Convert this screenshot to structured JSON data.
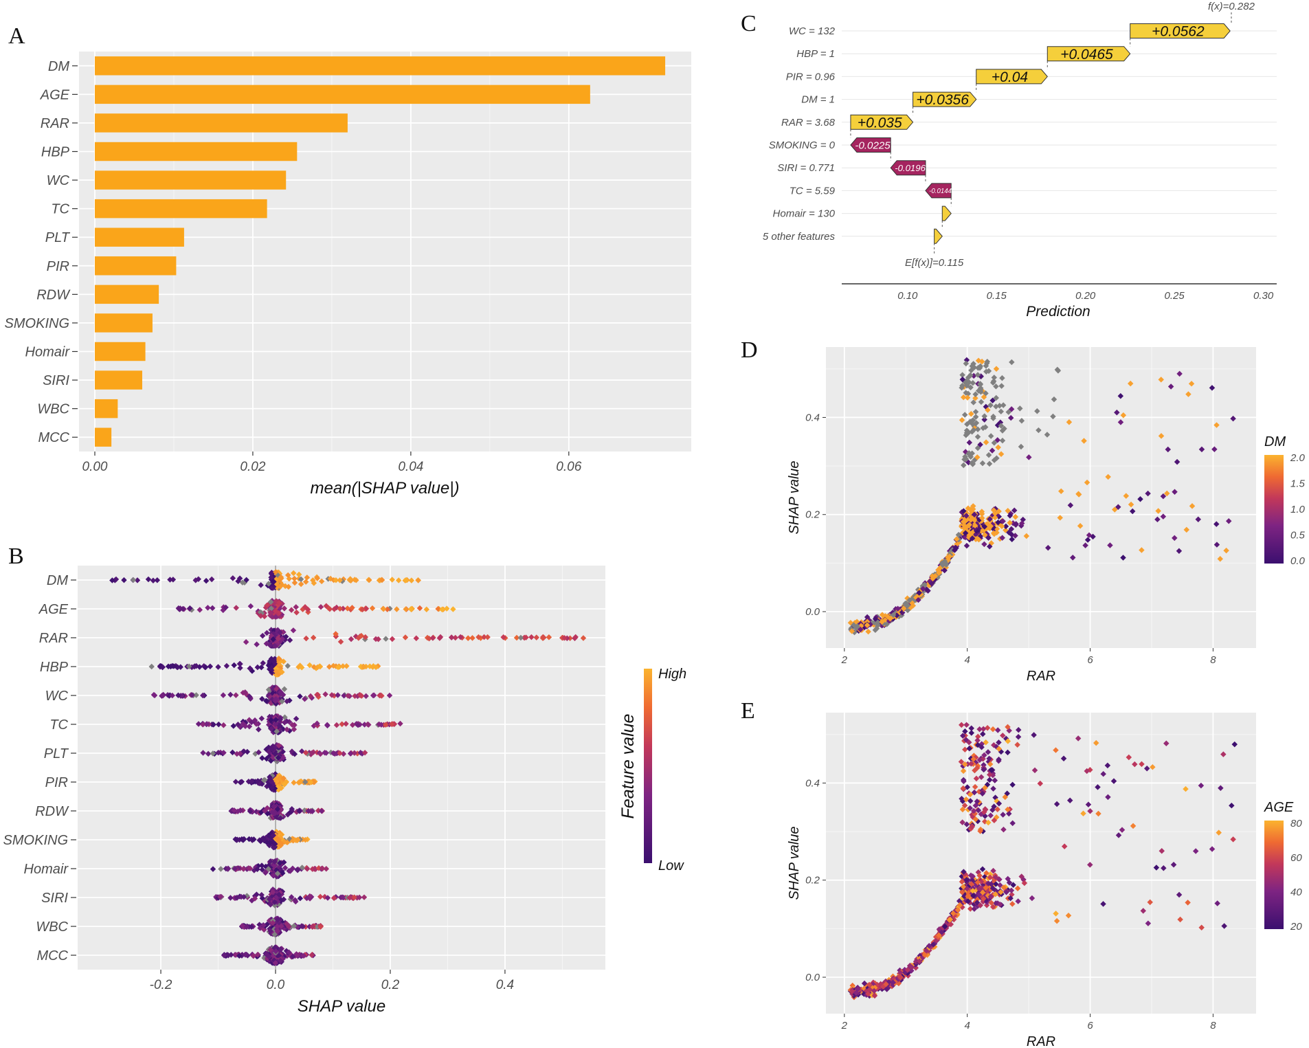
{
  "figure": {
    "panel_letters": [
      "A",
      "B",
      "C",
      "D",
      "E"
    ]
  },
  "chart_data": [
    {
      "panel": "A",
      "type": "bar",
      "orientation": "horizontal",
      "categories": [
        "DM",
        "AGE",
        "RAR",
        "HBP",
        "WC",
        "TC",
        "PLT",
        "PIR",
        "RDW",
        "SMOKING",
        "Homair",
        "SIRI",
        "WBC",
        "MCC"
      ],
      "values": [
        0.0722,
        0.0627,
        0.032,
        0.0256,
        0.0242,
        0.0218,
        0.0113,
        0.0103,
        0.0081,
        0.0073,
        0.0064,
        0.006,
        0.0029,
        0.0021
      ],
      "xlabel": "mean(|SHAP value|)",
      "ylabel": "",
      "xlim": [
        -0.002,
        0.0755
      ],
      "xticks": [
        0.0,
        0.02,
        0.04,
        0.06
      ],
      "xtick_labels": [
        "0.00",
        "0.02",
        "0.04",
        "0.06"
      ],
      "bar_color": "#FAA51A"
    },
    {
      "panel": "B",
      "type": "scatter",
      "subtype": "beeswarm",
      "categories": [
        "DM",
        "AGE",
        "RAR",
        "HBP",
        "WC",
        "TC",
        "PLT",
        "PIR",
        "RDW",
        "SMOKING",
        "Homair",
        "SIRI",
        "WBC",
        "MCC"
      ],
      "ranges": [
        [
          -0.31,
          0.25
        ],
        [
          -0.17,
          0.32
        ],
        [
          -0.06,
          0.54
        ],
        [
          -0.22,
          0.18
        ],
        [
          -0.22,
          0.2
        ],
        [
          -0.14,
          0.22
        ],
        [
          -0.13,
          0.16
        ],
        [
          -0.07,
          0.07
        ],
        [
          -0.08,
          0.09
        ],
        [
          -0.07,
          0.06
        ],
        [
          -0.11,
          0.09
        ],
        [
          -0.11,
          0.16
        ],
        [
          -0.06,
          0.08
        ],
        [
          -0.09,
          0.07
        ]
      ],
      "xlabel": "SHAP value",
      "xlim": [
        -0.345,
        0.575
      ],
      "xticks": [
        -0.2,
        0.0,
        0.2,
        0.4
      ],
      "xtick_labels": [
        "-0.2",
        "0.0",
        "0.2",
        "0.4"
      ],
      "legend": {
        "title": "Feature value",
        "high": "High",
        "low": "Low",
        "position": "right"
      }
    },
    {
      "panel": "C",
      "type": "bar",
      "subtype": "waterfall",
      "features": [
        "WC = 132",
        "HBP = 1",
        "PIR = 0.96",
        "DM = 1",
        "RAR = 3.68",
        "SMOKING = 0",
        "SIRI = 0.771",
        "TC = 5.59",
        "Homair = 130",
        "5 other features"
      ],
      "contributions": [
        0.0562,
        0.0465,
        0.04,
        0.0356,
        0.035,
        -0.0225,
        -0.0196,
        -0.0144,
        0.005,
        0.0045
      ],
      "contribution_labels": [
        "+0.0562",
        "+0.0465",
        "+0.04",
        "+0.0356",
        "+0.035",
        "-0.0225",
        "-0.0196",
        "-0.0144",
        "",
        ""
      ],
      "base_value": 0.115,
      "base_label": "E[f(x)]=0.115",
      "output_value": 0.282,
      "output_label": "f(x)=0.282",
      "xlabel": "Prediction",
      "xlim": [
        0.063,
        0.3075
      ],
      "xticks": [
        0.1,
        0.15,
        0.2,
        0.25,
        0.3
      ],
      "xtick_labels": [
        "0.10",
        "0.15",
        "0.20",
        "0.25",
        "0.30"
      ],
      "positive_color": "#F5CF3B",
      "negative_color": "#A5245F"
    },
    {
      "panel": "D",
      "type": "scatter",
      "xlabel": "RAR",
      "ylabel": "SHAP value",
      "xlim": [
        1.7,
        8.7
      ],
      "ylim": [
        -0.075,
        0.545
      ],
      "xticks": [
        2,
        4,
        6,
        8
      ],
      "xtick_labels": [
        "2",
        "4",
        "6",
        "8"
      ],
      "yticks": [
        0.0,
        0.2,
        0.4
      ],
      "ytick_labels": [
        "0.0",
        "0.2",
        "0.4"
      ],
      "color_by": "DM",
      "legend": {
        "title": "DM",
        "ticks": [
          "2.0",
          "1.5",
          "1.0",
          "0.5",
          "0.0"
        ],
        "position": "right"
      }
    },
    {
      "panel": "E",
      "type": "scatter",
      "xlabel": "RAR",
      "ylabel": "SHAP value",
      "xlim": [
        1.7,
        8.7
      ],
      "ylim": [
        -0.075,
        0.545
      ],
      "xticks": [
        2,
        4,
        6,
        8
      ],
      "xtick_labels": [
        "2",
        "4",
        "6",
        "8"
      ],
      "yticks": [
        0.0,
        0.2,
        0.4
      ],
      "ytick_labels": [
        "0.0",
        "0.2",
        "0.4"
      ],
      "color_by": "AGE",
      "legend": {
        "title": "AGE",
        "ticks": [
          "80",
          "60",
          "40",
          "20"
        ],
        "position": "right"
      }
    }
  ]
}
